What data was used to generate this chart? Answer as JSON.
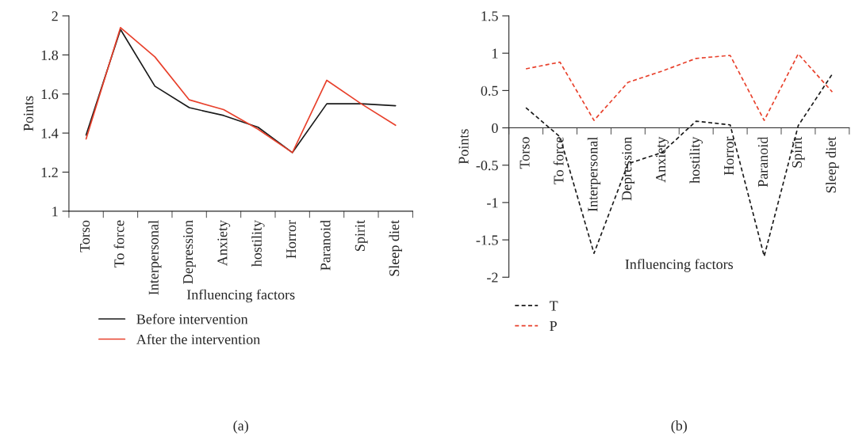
{
  "chart_data": [
    {
      "type": "line",
      "xlabel": "Influencing factors",
      "ylabel": "Points",
      "categories": [
        "Torso",
        "To force",
        "Interpersonal",
        "Depression",
        "Anxiety",
        "hostility",
        "Horror",
        "Paranoid",
        "Spirit",
        "Sleep diet"
      ],
      "series": [
        {
          "name": "Before intervention",
          "color": "#1a1a1a",
          "line_style": "solid",
          "values": [
            1.39,
            1.93,
            1.64,
            1.53,
            1.49,
            1.43,
            1.3,
            1.55,
            1.55,
            1.54
          ]
        },
        {
          "name": "After the intervention",
          "color": "#e8412c",
          "line_style": "solid",
          "values": [
            1.37,
            1.94,
            1.79,
            1.57,
            1.52,
            1.42,
            1.3,
            1.67,
            1.55,
            1.44
          ]
        }
      ],
      "ylim": [
        1,
        2
      ],
      "yticks": [
        1,
        1.2,
        1.4,
        1.6,
        1.8,
        2
      ],
      "grid": false,
      "legend": "bottom",
      "marker": "none",
      "annotations": [
        "(a)"
      ]
    },
    {
      "type": "line",
      "xlabel": "Influencing factors",
      "ylabel": "Points",
      "categories": [
        "Torso",
        "To force",
        "Interpersonal",
        "Depression",
        "Anxiety",
        "hostility",
        "Horror",
        "Paranoid",
        "Spirit",
        "Sleep diet"
      ],
      "series": [
        {
          "name": "T",
          "color": "#1a1a1a",
          "line_style": "dashed",
          "values": [
            0.27,
            -0.12,
            -1.68,
            -0.48,
            -0.33,
            0.09,
            0.04,
            -1.72,
            0.03,
            0.72
          ]
        },
        {
          "name": "P",
          "color": "#e8412c",
          "line_style": "dashed",
          "values": [
            0.79,
            0.88,
            0.1,
            0.61,
            0.76,
            0.93,
            0.97,
            0.1,
            0.99,
            0.48
          ]
        }
      ],
      "ylim": [
        -2,
        1.5
      ],
      "yticks": [
        -2,
        -1.5,
        -1,
        -0.5,
        0,
        0.5,
        1,
        1.5
      ],
      "grid": false,
      "legend": "bottom left",
      "marker": "none",
      "annotations": [
        "(b)"
      ]
    }
  ]
}
